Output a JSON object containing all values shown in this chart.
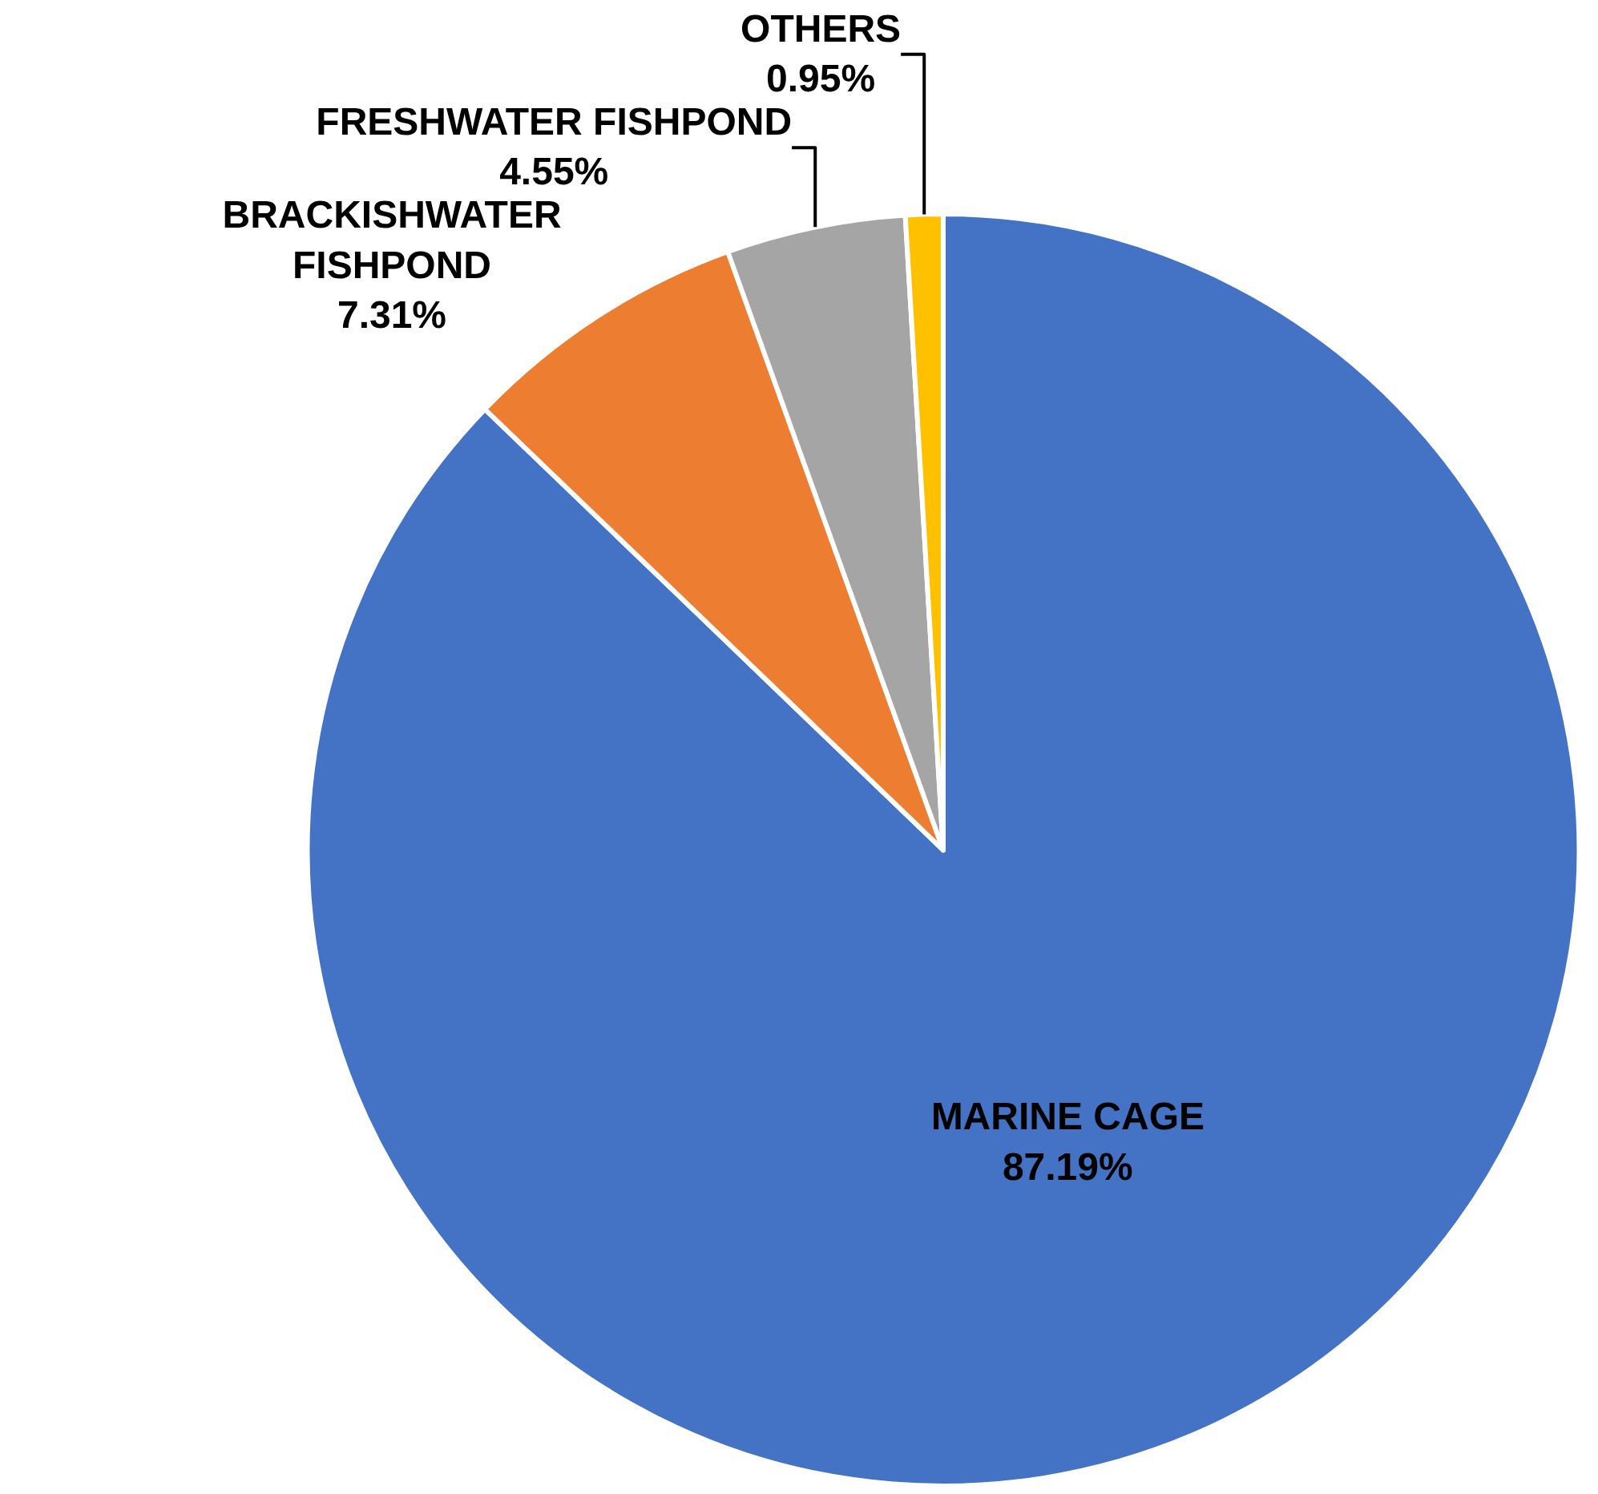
{
  "chart_data": {
    "type": "pie",
    "categories": [
      "MARINE CAGE",
      "BRACKISHWATER FISHPOND",
      "FRESHWATER FISHPOND",
      "OTHERS"
    ],
    "values": [
      87.19,
      7.31,
      4.55,
      0.95
    ],
    "colors": [
      "#4472c4",
      "#ed7d31",
      "#a5a5a5",
      "#ffc000"
    ],
    "value_labels": [
      "87.19%",
      "7.31%",
      "4.55%",
      "0.95%"
    ],
    "legend": false
  }
}
